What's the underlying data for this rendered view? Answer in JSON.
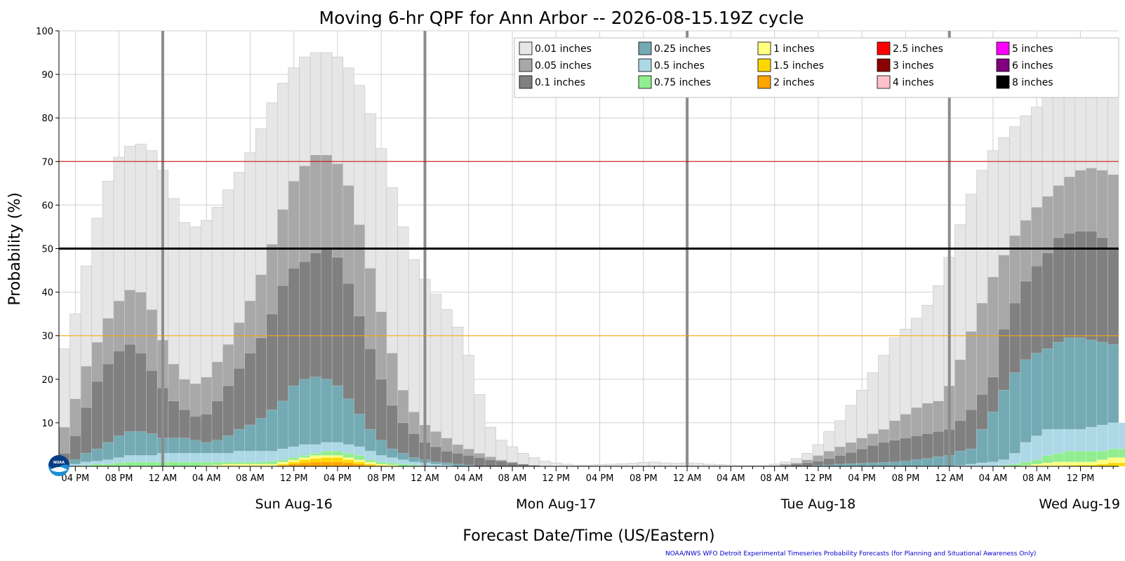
{
  "chart_data": {
    "type": "bar",
    "title": "Moving 6-hr QPF for Ann Arbor -- 2026-08-15.19Z cycle",
    "xlabel": "Forecast Date/Time (US/Eastern)",
    "ylabel": "Probability (%)",
    "ylim": [
      0,
      100
    ],
    "yticks": [
      10,
      20,
      30,
      40,
      50,
      60,
      70,
      80,
      90,
      100
    ],
    "grid": true,
    "legend_position": "top-right",
    "start_hour_of_day": 15,
    "step_hours": 1,
    "hour_tick_labels": [
      "04 PM",
      "08 PM",
      "12 AM",
      "04 AM",
      "08 AM",
      "12 PM",
      "04 PM",
      "08 PM",
      "12 AM",
      "04 AM",
      "08 AM",
      "12 PM",
      "04 PM",
      "08 PM",
      "12 AM",
      "04 AM",
      "08 AM",
      "12 PM",
      "04 PM",
      "08 PM",
      "12 AM",
      "04 AM",
      "08 AM",
      "12 PM"
    ],
    "day_labels": [
      {
        "label": "Sun Aug-16",
        "hour_index": 21
      },
      {
        "label": "Mon Aug-17",
        "hour_index": 45
      },
      {
        "label": "Tue Aug-18",
        "hour_index": 69
      },
      {
        "label": "Wed Aug-19",
        "hour_index": 93
      }
    ],
    "reference_lines": [
      {
        "y": 70,
        "color": "#cc0000"
      },
      {
        "y": 50,
        "color": "#000000"
      },
      {
        "y": 30,
        "color": "#ffa500"
      }
    ],
    "series": [
      {
        "name": "0.01 inches",
        "color": "#e6e6e6",
        "values": [
          27,
          35,
          46,
          57,
          65.5,
          71,
          73.5,
          74,
          72.5,
          68,
          61.5,
          56,
          55,
          56.5,
          59.5,
          63.5,
          67.5,
          72,
          77.5,
          83.5,
          88,
          91.5,
          94,
          95,
          95,
          94,
          91.5,
          87.5,
          81,
          73,
          64,
          55,
          47.5,
          43,
          39.5,
          36,
          32,
          25.5,
          16.5,
          9,
          6,
          4.5,
          3,
          2,
          1.2,
          0.8,
          0.5,
          0.3,
          0.3,
          0.4,
          0.5,
          0.6,
          0.7,
          0.9,
          1,
          0.8,
          0.7,
          0.8,
          0.7,
          0.5,
          0.4,
          0.3,
          0.2,
          0.2,
          0.2,
          0.5,
          1,
          1.8,
          3,
          5,
          8,
          10.5,
          14,
          17.5,
          21.5,
          25.5,
          29.5,
          31.5,
          34,
          37,
          41.5,
          48,
          55.5,
          62.5,
          68,
          72.5,
          75.5,
          78,
          80.5,
          82.5,
          85,
          86.5,
          88,
          90,
          91,
          90,
          89
        ]
      },
      {
        "name": "0.05 inches",
        "color": "#a8a8a8",
        "values": [
          9,
          15.5,
          23,
          28.5,
          34,
          38,
          40.5,
          40,
          36,
          29,
          23.5,
          20,
          19,
          20.5,
          24,
          28,
          33,
          38,
          44,
          51,
          59,
          65.5,
          69,
          71.5,
          71.5,
          69.5,
          64.5,
          55.5,
          45.5,
          35.5,
          26,
          17.5,
          12.5,
          9.5,
          8,
          6.5,
          5,
          4,
          3,
          2.2,
          1.5,
          1,
          0.5,
          0.3,
          0.1,
          0,
          0,
          0,
          0,
          0,
          0,
          0,
          0,
          0,
          0,
          0,
          0,
          0,
          0,
          0,
          0,
          0,
          0,
          0,
          0,
          0.2,
          0.5,
          0.8,
          1.5,
          2.5,
          3.5,
          4.5,
          5.5,
          6.5,
          7.5,
          8.5,
          10.5,
          12,
          13.5,
          14.5,
          15,
          18.5,
          24.5,
          31,
          37.5,
          43.5,
          48.5,
          53,
          56.5,
          59.5,
          62,
          64.5,
          66.5,
          68,
          68.5,
          68,
          67
        ]
      },
      {
        "name": "0.1 inches",
        "color": "#808080",
        "values": [
          3,
          7,
          13.5,
          19.5,
          23.5,
          26.5,
          28,
          26,
          22,
          18,
          15,
          13,
          11.5,
          12,
          15,
          18.5,
          22.5,
          26,
          29.5,
          35,
          41.5,
          45.5,
          47,
          49,
          50,
          48,
          42,
          34.5,
          27,
          20,
          14,
          10,
          7.5,
          5.5,
          4.5,
          3.5,
          3,
          2.5,
          2,
          1.5,
          1.2,
          0.8,
          0.5,
          0.2,
          0,
          0,
          0,
          0,
          0,
          0,
          0,
          0,
          0,
          0,
          0,
          0,
          0,
          0,
          0,
          0,
          0,
          0,
          0,
          0,
          0,
          0,
          0.2,
          0.5,
          0.8,
          1.2,
          1.8,
          2.5,
          3.2,
          4,
          4.8,
          5.5,
          6,
          6.5,
          7,
          7.5,
          8,
          8.5,
          10.5,
          13,
          16.5,
          20.5,
          31.5,
          37.5,
          42.5,
          46,
          49,
          52.5,
          53.5,
          54,
          54,
          52.5,
          50
        ]
      },
      {
        "name": "0.25 inches",
        "color": "#74aab3",
        "values": [
          0.5,
          1.5,
          3,
          4,
          5.5,
          7,
          8,
          8,
          7.5,
          6.5,
          6.5,
          6.5,
          6,
          5.5,
          6,
          7,
          8.5,
          9.5,
          11,
          13,
          15,
          18.5,
          20,
          20.5,
          20,
          18.5,
          15.5,
          12,
          8.5,
          6,
          4,
          3,
          2,
          1.5,
          1,
          0.8,
          0.5,
          0.3,
          0,
          0,
          0,
          0,
          0,
          0,
          0,
          0,
          0,
          0,
          0,
          0,
          0,
          0,
          0,
          0,
          0,
          0,
          0,
          0,
          0,
          0,
          0,
          0,
          0,
          0,
          0,
          0,
          0,
          0,
          0,
          0.2,
          0.3,
          0.5,
          0.6,
          0.7,
          0.8,
          0.9,
          1,
          1.2,
          1.5,
          1.8,
          2.2,
          2.5,
          3.5,
          4,
          8.5,
          12.5,
          17.5,
          21.5,
          24.5,
          26,
          27,
          28.5,
          29.5,
          29.5,
          29,
          28.5,
          28
        ]
      },
      {
        "name": "0.5 inches",
        "color": "#add8e6",
        "values": [
          0,
          0.5,
          1,
          1.2,
          1.5,
          2,
          2.5,
          2.5,
          2.5,
          3,
          3,
          3,
          3,
          3,
          3,
          3,
          3.5,
          3.5,
          3.5,
          3.5,
          4,
          4.5,
          5,
          5,
          5.5,
          5.5,
          5,
          4.5,
          3.5,
          2.5,
          2,
          1.5,
          1,
          0.8,
          0.5,
          0.3,
          0,
          0,
          0,
          0,
          0,
          0,
          0,
          0,
          0,
          0,
          0,
          0,
          0,
          0,
          0,
          0,
          0,
          0,
          0,
          0,
          0,
          0,
          0,
          0,
          0,
          0,
          0,
          0,
          0,
          0,
          0,
          0,
          0,
          0,
          0,
          0,
          0,
          0,
          0,
          0,
          0,
          0,
          0,
          0,
          0,
          0,
          0.2,
          0.5,
          0.8,
          1,
          1.5,
          3,
          5.5,
          7,
          8.5,
          8.5,
          8.5,
          8.5,
          9,
          9.5,
          10,
          10
        ]
      },
      {
        "name": "0.75 inches",
        "color": "#90ee90",
        "values": [
          0,
          0,
          0.2,
          0.5,
          0.5,
          0.8,
          1,
          1,
          1,
          1,
          1,
          1,
          1,
          1,
          1,
          1,
          1,
          1,
          1,
          1.2,
          1.5,
          2,
          2.5,
          3,
          3.5,
          3.5,
          3,
          2.5,
          1.5,
          1,
          0.8,
          0.5,
          0.3,
          0,
          0,
          0,
          0,
          0,
          0,
          0,
          0,
          0,
          0,
          0,
          0,
          0,
          0,
          0,
          0,
          0,
          0,
          0,
          0,
          0,
          0,
          0,
          0,
          0,
          0,
          0,
          0,
          0,
          0,
          0,
          0,
          0,
          0,
          0,
          0,
          0,
          0,
          0,
          0,
          0,
          0,
          0,
          0,
          0,
          0,
          0,
          0,
          0,
          0,
          0,
          0,
          0,
          0.2,
          0.5,
          1,
          1.5,
          2.5,
          3,
          3.5,
          3.5,
          3.5,
          3.5,
          4,
          4
        ]
      },
      {
        "name": "1 inches",
        "color": "#ffff80",
        "values": [
          0,
          0,
          0,
          0,
          0,
          0,
          0,
          0,
          0,
          0,
          0,
          0,
          0,
          0.2,
          0.3,
          0.5,
          0.5,
          0.5,
          0.5,
          0.5,
          1,
          1.5,
          2,
          2.5,
          2.5,
          2.5,
          2,
          1.5,
          1,
          0.5,
          0.3,
          0,
          0,
          0,
          0,
          0,
          0,
          0,
          0,
          0,
          0,
          0,
          0,
          0,
          0,
          0,
          0,
          0,
          0,
          0,
          0,
          0,
          0,
          0,
          0,
          0,
          0,
          0,
          0,
          0,
          0,
          0,
          0,
          0,
          0,
          0,
          0,
          0,
          0,
          0,
          0,
          0,
          0,
          0,
          0,
          0,
          0,
          0,
          0,
          0,
          0,
          0,
          0,
          0,
          0,
          0,
          0,
          0,
          0.2,
          0.5,
          0.8,
          1,
          1,
          1,
          1,
          1.5,
          2,
          2
        ]
      },
      {
        "name": "1.5 inches",
        "color": "#ffd700",
        "values": [
          0,
          0,
          0,
          0,
          0,
          0,
          0,
          0,
          0,
          0,
          0,
          0,
          0,
          0,
          0,
          0,
          0,
          0,
          0,
          0,
          0.5,
          1,
          1.5,
          1.8,
          2,
          2,
          1.5,
          1,
          0.5,
          0.2,
          0,
          0,
          0,
          0,
          0,
          0,
          0,
          0,
          0,
          0,
          0,
          0,
          0,
          0,
          0,
          0,
          0,
          0,
          0,
          0,
          0,
          0,
          0,
          0,
          0,
          0,
          0,
          0,
          0,
          0,
          0,
          0,
          0,
          0,
          0,
          0,
          0,
          0,
          0,
          0,
          0,
          0,
          0,
          0,
          0,
          0,
          0,
          0,
          0,
          0,
          0,
          0,
          0,
          0,
          0,
          0,
          0,
          0,
          0,
          0,
          0,
          0,
          0.2,
          0.3,
          0.3,
          0.5,
          0.8,
          0.8
        ]
      },
      {
        "name": "2 inches",
        "color": "#ffa500",
        "values": [
          0,
          0,
          0,
          0,
          0,
          0,
          0,
          0,
          0,
          0,
          0,
          0,
          0,
          0,
          0,
          0,
          0,
          0,
          0,
          0,
          0.2,
          0.5,
          0.8,
          1,
          1,
          1,
          0.8,
          0.5,
          0.2,
          0,
          0,
          0,
          0,
          0,
          0,
          0,
          0,
          0,
          0,
          0,
          0,
          0,
          0,
          0,
          0,
          0,
          0,
          0,
          0,
          0,
          0,
          0,
          0,
          0,
          0,
          0,
          0,
          0,
          0,
          0,
          0,
          0,
          0,
          0,
          0,
          0,
          0,
          0,
          0,
          0,
          0,
          0,
          0,
          0,
          0,
          0,
          0,
          0,
          0,
          0,
          0,
          0,
          0,
          0,
          0,
          0,
          0,
          0,
          0,
          0,
          0,
          0,
          0,
          0,
          0,
          0,
          0,
          0
        ]
      },
      {
        "name": "2.5 inches",
        "color": "#ff0000",
        "values": []
      },
      {
        "name": "3 inches",
        "color": "#8b0000",
        "values": []
      },
      {
        "name": "4 inches",
        "color": "#ffc0cb",
        "values": []
      },
      {
        "name": "5 inches",
        "color": "#ff00ff",
        "values": []
      },
      {
        "name": "6 inches",
        "color": "#800080",
        "values": []
      },
      {
        "name": "8 inches",
        "color": "#000000",
        "values": []
      }
    ]
  },
  "footer": {
    "credit": "NOAA/NWS WFO Detroit Experimental Timeseries Probability Forecasts (for Planning and Situational Awareness Only)",
    "logo": "NOAA"
  }
}
